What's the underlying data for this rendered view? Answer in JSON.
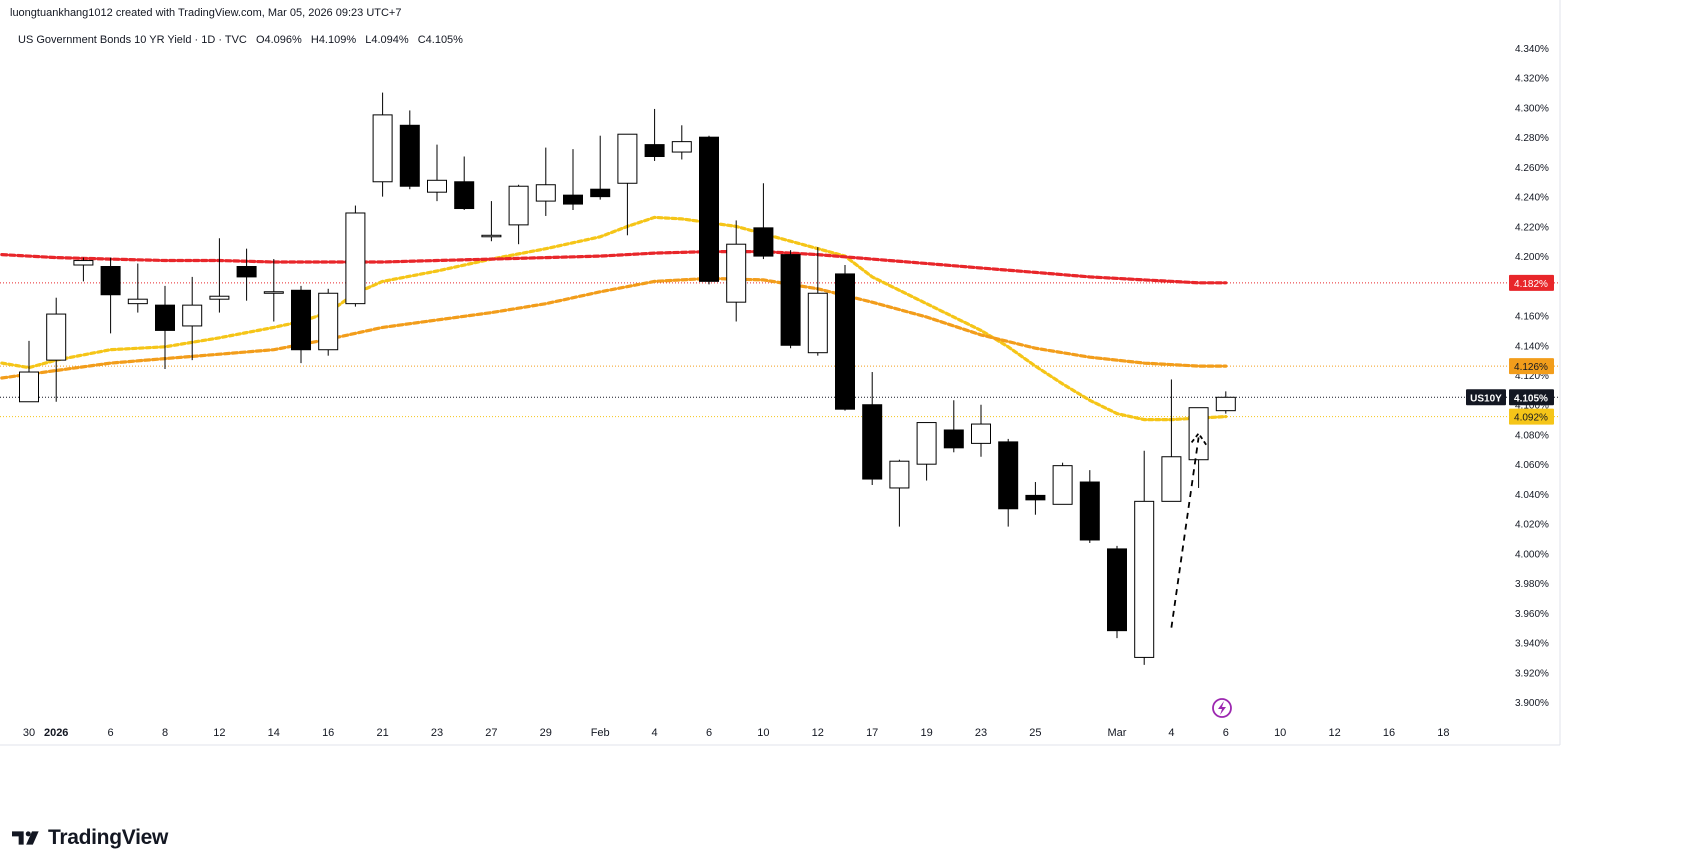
{
  "header": {
    "credit": "luongtuankhang1012 created with TradingView.com, Mar 05, 2026 09:23 UTC+7"
  },
  "legend": {
    "title": "US Government Bonds 10 YR Yield · 1D · TVC",
    "open": "O4.096%",
    "high": "H4.109%",
    "low": "L4.094%",
    "close": "C4.105%"
  },
  "logo": {
    "text": "TradingView"
  },
  "colors": {
    "bull_fill": "#ffffff",
    "bear_fill": "#000000",
    "candle_stroke": "#000000",
    "ma_fast": "#f5c518",
    "ma_mid": "#f29d1b",
    "ma_slow": "#e8262a",
    "price_line": "#131722"
  },
  "chart_data": {
    "type": "candlestick",
    "symbol": "US10Y",
    "ylim": [
      3.89,
      4.345
    ],
    "y_ticks": [
      "4.340%",
      "4.320%",
      "4.300%",
      "4.280%",
      "4.260%",
      "4.240%",
      "4.220%",
      "4.200%",
      "4.180%",
      "4.160%",
      "4.140%",
      "4.120%",
      "4.100%",
      "4.080%",
      "4.060%",
      "4.040%",
      "4.020%",
      "4.000%",
      "3.980%",
      "3.960%",
      "3.940%",
      "3.920%",
      "3.900%"
    ],
    "x_ticks": [
      {
        "label": "30",
        "idx": 0
      },
      {
        "label": "2026",
        "idx": 1,
        "bold": true
      },
      {
        "label": "6",
        "idx": 3
      },
      {
        "label": "8",
        "idx": 5
      },
      {
        "label": "12",
        "idx": 7
      },
      {
        "label": "14",
        "idx": 9
      },
      {
        "label": "16",
        "idx": 11
      },
      {
        "label": "21",
        "idx": 13
      },
      {
        "label": "23",
        "idx": 15
      },
      {
        "label": "27",
        "idx": 17
      },
      {
        "label": "29",
        "idx": 19
      },
      {
        "label": "Feb",
        "idx": 21
      },
      {
        "label": "4",
        "idx": 23
      },
      {
        "label": "6",
        "idx": 25
      },
      {
        "label": "10",
        "idx": 27
      },
      {
        "label": "12",
        "idx": 29
      },
      {
        "label": "17",
        "idx": 31
      },
      {
        "label": "19",
        "idx": 33
      },
      {
        "label": "23",
        "idx": 35
      },
      {
        "label": "25",
        "idx": 37
      },
      {
        "label": "Mar",
        "idx": 40
      },
      {
        "label": "4",
        "idx": 42
      },
      {
        "label": "6",
        "idx": 44
      },
      {
        "label": "10",
        "idx": 46
      },
      {
        "label": "12",
        "idx": 48
      },
      {
        "label": "16",
        "idx": 50
      },
      {
        "label": "18",
        "idx": 52
      }
    ],
    "candles": [
      {
        "o": 4.102,
        "h": 4.143,
        "l": 4.102,
        "c": 4.122
      },
      {
        "o": 4.13,
        "h": 4.172,
        "l": 4.102,
        "c": 4.161
      },
      {
        "o": 4.194,
        "h": 4.199,
        "l": 4.183,
        "c": 4.197
      },
      {
        "o": 4.193,
        "h": 4.199,
        "l": 4.148,
        "c": 4.174
      },
      {
        "o": 4.168,
        "h": 4.195,
        "l": 4.162,
        "c": 4.171
      },
      {
        "o": 4.167,
        "h": 4.18,
        "l": 4.124,
        "c": 4.15
      },
      {
        "o": 4.153,
        "h": 4.186,
        "l": 4.13,
        "c": 4.167
      },
      {
        "o": 4.171,
        "h": 4.212,
        "l": 4.162,
        "c": 4.173
      },
      {
        "o": 4.193,
        "h": 4.205,
        "l": 4.17,
        "c": 4.186
      },
      {
        "o": 4.175,
        "h": 4.198,
        "l": 4.156,
        "c": 4.176
      },
      {
        "o": 4.177,
        "h": 4.18,
        "l": 4.128,
        "c": 4.137
      },
      {
        "o": 4.137,
        "h": 4.178,
        "l": 4.133,
        "c": 4.175
      },
      {
        "o": 4.168,
        "h": 4.234,
        "l": 4.166,
        "c": 4.229
      },
      {
        "o": 4.25,
        "h": 4.31,
        "l": 4.24,
        "c": 4.295
      },
      {
        "o": 4.288,
        "h": 4.298,
        "l": 4.245,
        "c": 4.247
      },
      {
        "o": 4.243,
        "h": 4.275,
        "l": 4.237,
        "c": 4.251
      },
      {
        "o": 4.25,
        "h": 4.267,
        "l": 4.231,
        "c": 4.232
      },
      {
        "o": 4.214,
        "h": 4.237,
        "l": 4.21,
        "c": 4.214
      },
      {
        "o": 4.221,
        "h": 4.248,
        "l": 4.208,
        "c": 4.247
      },
      {
        "o": 4.237,
        "h": 4.273,
        "l": 4.227,
        "c": 4.248
      },
      {
        "o": 4.241,
        "h": 4.272,
        "l": 4.231,
        "c": 4.235
      },
      {
        "o": 4.245,
        "h": 4.281,
        "l": 4.238,
        "c": 4.24
      },
      {
        "o": 4.249,
        "h": 4.282,
        "l": 4.214,
        "c": 4.282
      },
      {
        "o": 4.275,
        "h": 4.299,
        "l": 4.264,
        "c": 4.267
      },
      {
        "o": 4.27,
        "h": 4.288,
        "l": 4.265,
        "c": 4.277
      },
      {
        "o": 4.28,
        "h": 4.281,
        "l": 4.181,
        "c": 4.183
      },
      {
        "o": 4.169,
        "h": 4.224,
        "l": 4.156,
        "c": 4.208
      },
      {
        "o": 4.219,
        "h": 4.249,
        "l": 4.198,
        "c": 4.2
      },
      {
        "o": 4.201,
        "h": 4.204,
        "l": 4.138,
        "c": 4.14
      },
      {
        "o": 4.135,
        "h": 4.206,
        "l": 4.133,
        "c": 4.175
      },
      {
        "o": 4.188,
        "h": 4.194,
        "l": 4.096,
        "c": 4.097
      },
      {
        "o": 4.1,
        "h": 4.122,
        "l": 4.046,
        "c": 4.05
      },
      {
        "o": 4.044,
        "h": 4.063,
        "l": 4.018,
        "c": 4.062
      },
      {
        "o": 4.06,
        "h": 4.087,
        "l": 4.049,
        "c": 4.088
      },
      {
        "o": 4.083,
        "h": 4.103,
        "l": 4.068,
        "c": 4.071
      },
      {
        "o": 4.074,
        "h": 4.1,
        "l": 4.065,
        "c": 4.087
      },
      {
        "o": 4.075,
        "h": 4.077,
        "l": 4.018,
        "c": 4.03
      },
      {
        "o": 4.039,
        "h": 4.048,
        "l": 4.026,
        "c": 4.036
      },
      {
        "o": 4.033,
        "h": 4.061,
        "l": 4.033,
        "c": 4.059
      },
      {
        "o": 4.048,
        "h": 4.056,
        "l": 4.007,
        "c": 4.009
      },
      {
        "o": 4.003,
        "h": 4.005,
        "l": 3.943,
        "c": 3.948
      },
      {
        "o": 3.93,
        "h": 4.069,
        "l": 3.925,
        "c": 4.035
      },
      {
        "o": 4.035,
        "h": 4.117,
        "l": 4.035,
        "c": 4.065
      },
      {
        "o": 4.063,
        "h": 4.098,
        "l": 4.044,
        "c": 4.098
      },
      {
        "o": 4.096,
        "h": 4.109,
        "l": 4.094,
        "c": 4.105
      }
    ],
    "series": [
      {
        "name": "",
        "style": "dotted",
        "color": "#f5c518",
        "value_label": "4.092%",
        "last": 4.092,
        "points": [
          [
            -1,
            4.128
          ],
          [
            0,
            4.125
          ],
          [
            1,
            4.13
          ],
          [
            3,
            4.137
          ],
          [
            5,
            4.139
          ],
          [
            7,
            4.145
          ],
          [
            9,
            4.152
          ],
          [
            10,
            4.156
          ],
          [
            11,
            4.162
          ],
          [
            12,
            4.175
          ],
          [
            13,
            4.183
          ],
          [
            15,
            4.19
          ],
          [
            17,
            4.198
          ],
          [
            19,
            4.205
          ],
          [
            21,
            4.213
          ],
          [
            22,
            4.22
          ],
          [
            23,
            4.226
          ],
          [
            24,
            4.225
          ],
          [
            26,
            4.22
          ],
          [
            28,
            4.21
          ],
          [
            30,
            4.2
          ],
          [
            31,
            4.186
          ],
          [
            33,
            4.168
          ],
          [
            35,
            4.15
          ],
          [
            36,
            4.139
          ],
          [
            37,
            4.126
          ],
          [
            38,
            4.114
          ],
          [
            39,
            4.103
          ],
          [
            40,
            4.094
          ],
          [
            41,
            4.09
          ],
          [
            42,
            4.09
          ],
          [
            43,
            4.091
          ],
          [
            44,
            4.092
          ]
        ]
      },
      {
        "name": "",
        "style": "dashed",
        "color": "#f29d1b",
        "value_label": "4.126%",
        "last": 4.126,
        "points": [
          [
            -1,
            4.118
          ],
          [
            1,
            4.123
          ],
          [
            3,
            4.128
          ],
          [
            5,
            4.131
          ],
          [
            7,
            4.134
          ],
          [
            9,
            4.137
          ],
          [
            11,
            4.144
          ],
          [
            13,
            4.152
          ],
          [
            15,
            4.157
          ],
          [
            17,
            4.162
          ],
          [
            19,
            4.168
          ],
          [
            21,
            4.176
          ],
          [
            23,
            4.183
          ],
          [
            25,
            4.185
          ],
          [
            27,
            4.184
          ],
          [
            29,
            4.178
          ],
          [
            31,
            4.169
          ],
          [
            33,
            4.159
          ],
          [
            35,
            4.147
          ],
          [
            37,
            4.138
          ],
          [
            39,
            4.132
          ],
          [
            41,
            4.128
          ],
          [
            43,
            4.126
          ],
          [
            44,
            4.126
          ]
        ]
      },
      {
        "name": "",
        "style": "dashed",
        "color": "#e8262a",
        "value_label": "4.182%",
        "last": 4.182,
        "points": [
          [
            -1,
            4.201
          ],
          [
            1,
            4.199
          ],
          [
            3,
            4.198
          ],
          [
            5,
            4.197
          ],
          [
            7,
            4.197
          ],
          [
            9,
            4.196
          ],
          [
            11,
            4.196
          ],
          [
            13,
            4.196
          ],
          [
            15,
            4.197
          ],
          [
            17,
            4.198
          ],
          [
            19,
            4.199
          ],
          [
            21,
            4.2
          ],
          [
            23,
            4.202
          ],
          [
            25,
            4.203
          ],
          [
            27,
            4.203
          ],
          [
            29,
            4.201
          ],
          [
            31,
            4.198
          ],
          [
            33,
            4.195
          ],
          [
            35,
            4.192
          ],
          [
            37,
            4.189
          ],
          [
            39,
            4.186
          ],
          [
            41,
            4.184
          ],
          [
            43,
            4.182
          ],
          [
            44,
            4.182
          ]
        ]
      }
    ],
    "annotation_arrow": {
      "from": [
        42.0,
        3.95
      ],
      "to": [
        43.0,
        4.078
      ],
      "head_to": [
        43.3,
        4.077
      ]
    },
    "price_badge": {
      "symbol": "US10Y",
      "value": "4.105%",
      "value_num": 4.105
    }
  }
}
